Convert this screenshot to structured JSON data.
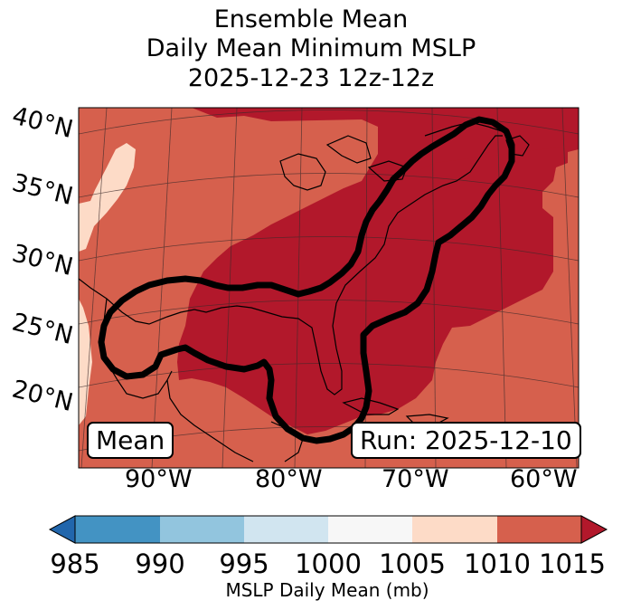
{
  "title": {
    "line1": "Ensemble Mean",
    "line2": "Daily Mean Minimum MSLP",
    "line3": "2025-12-23 12z-12z"
  },
  "map": {
    "lat_labels": [
      "40°N",
      "35°N",
      "30°N",
      "25°N",
      "20°N"
    ],
    "lon_labels": [
      "90°W",
      "80°W",
      "70°W",
      "60°W"
    ],
    "mean_label": "Mean",
    "run_label": "Run: 2025-12-10",
    "region": "Eastern North America, Gulf of Mexico and western Atlantic",
    "contour_color": "#000000",
    "fill_colors": {
      "1000-1005": "#f7f7f7",
      "1005-1010": "#fddbc7",
      "1010-1015": "#d6604d",
      "above-1015": "#b2182b"
    }
  },
  "colorbar": {
    "ticks": [
      "985",
      "990",
      "995",
      "1000",
      "1005",
      "1010",
      "1015"
    ],
    "label": "MSLP Daily Mean (mb)",
    "colors": {
      "below-985": "#2166ac",
      "985-990": "#4393c3",
      "990-995": "#92c5de",
      "995-1000": "#d1e5f0",
      "1000-1005": "#f7f7f7",
      "1005-1010": "#fddbc7",
      "1010-1015": "#d6604d",
      "above-1015": "#b2182b"
    }
  }
}
